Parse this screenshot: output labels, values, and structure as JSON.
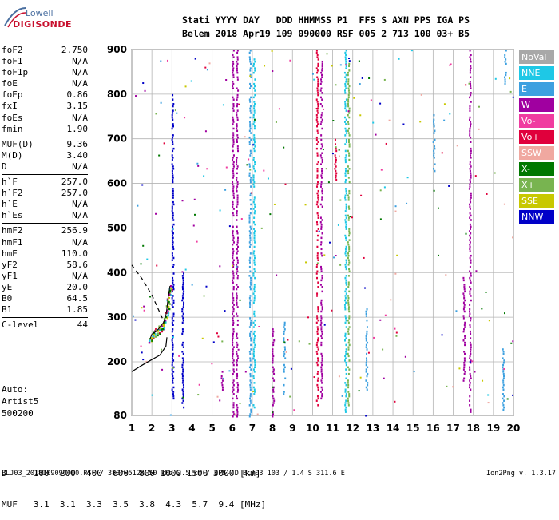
{
  "logo": {
    "top": "Lowell",
    "bottom": "DIGISONDE"
  },
  "header": {
    "line1": "Stati YYYY DAY   DDD HHMMSS P1  FFS S AXN PPS IGA PS",
    "line2": "Belem 2018 Apr19 109 090000 RSF 005 2 713 100 03+ B5"
  },
  "params": [
    {
      "label": "foF2",
      "value": "2.750"
    },
    {
      "label": "foF1",
      "value": "N/A"
    },
    {
      "label": "foF1p",
      "value": "N/A"
    },
    {
      "label": "foE",
      "value": "N/A"
    },
    {
      "label": "foEp",
      "value": "0.86"
    },
    {
      "label": "fxI",
      "value": "3.15"
    },
    {
      "label": "foEs",
      "value": "N/A"
    },
    {
      "label": "fmin",
      "value": "1.90"
    },
    {
      "label": "MUF(D)",
      "value": "9.36"
    },
    {
      "label": "M(D)",
      "value": "3.40"
    },
    {
      "label": "D",
      "value": "N/A"
    },
    {
      "label": "h`F",
      "value": "257.0"
    },
    {
      "label": "h`F2",
      "value": "257.0"
    },
    {
      "label": "h`E",
      "value": "N/A"
    },
    {
      "label": "h`Es",
      "value": "N/A"
    },
    {
      "label": "hmF2",
      "value": "256.9"
    },
    {
      "label": "hmF1",
      "value": "N/A"
    },
    {
      "label": "hmE",
      "value": "110.0"
    },
    {
      "label": "yF2",
      "value": "58.6"
    },
    {
      "label": "yF1",
      "value": "N/A"
    },
    {
      "label": "yE",
      "value": "20.0"
    },
    {
      "label": "B0",
      "value": "64.5"
    },
    {
      "label": "B1",
      "value": "1.85"
    },
    {
      "label": "C-level",
      "value": "44"
    }
  ],
  "auto": {
    "line1": "Auto:",
    "line2": "Artist5",
    "line3": "500200"
  },
  "legend": [
    {
      "label": "NoVal",
      "color": "#a8a8a8"
    },
    {
      "label": "NNE",
      "color": "#1ec8e6"
    },
    {
      "label": "E",
      "color": "#3ca0e0"
    },
    {
      "label": "W",
      "color": "#a000a0"
    },
    {
      "label": "Vo-",
      "color": "#f03ca0"
    },
    {
      "label": "Vo+",
      "color": "#e0003c"
    },
    {
      "label": "SSW",
      "color": "#f0a8a0"
    },
    {
      "label": "X-",
      "color": "#007800"
    },
    {
      "label": "X+",
      "color": "#78b450"
    },
    {
      "label": "SSE",
      "color": "#c8c800"
    },
    {
      "label": "NNW",
      "color": "#0000c8"
    }
  ],
  "dtable": {
    "row1": "D     100  200  400  600  800 1000 1500 3000 [km]",
    "row2": "MUF   3.1  3.1  3.3  3.5  3.8  4.3  5.7  9.4 [MHz]"
  },
  "footer": "BLJ03_2018109090000.RSF / 380fx512h 50 kHz 2.5 km / DPS-4D BLJ03 103 / 1.4 S 311.6 E",
  "version": "Ion2Png v. 1.3.17",
  "chart_data": {
    "type": "scatter",
    "xlim": [
      1,
      20
    ],
    "ylim": [
      80,
      900
    ],
    "x_ticks": [
      1,
      2,
      3,
      4,
      5,
      6,
      7,
      8,
      9,
      10,
      11,
      12,
      13,
      14,
      15,
      16,
      17,
      18,
      19,
      20
    ],
    "y_ticks": [
      80,
      200,
      300,
      400,
      500,
      600,
      700,
      800,
      900
    ],
    "grid": true,
    "legend_position": "right",
    "vertical_traces": [
      {
        "x": 6.05,
        "y0": 80,
        "y1": 900,
        "color": "#a000a0"
      },
      {
        "x": 6.25,
        "y0": 80,
        "y1": 900,
        "color": "#a000a0"
      },
      {
        "x": 6.9,
        "y0": 80,
        "y1": 900,
        "color": "#3ca0e0"
      },
      {
        "x": 7.1,
        "y0": 100,
        "y1": 900,
        "color": "#1ec8e6"
      },
      {
        "x": 10.25,
        "y0": 100,
        "y1": 900,
        "color": "#e0003c"
      },
      {
        "x": 10.45,
        "y0": 120,
        "y1": 880,
        "color": "#a000a0"
      },
      {
        "x": 11.65,
        "y0": 90,
        "y1": 900,
        "color": "#1ec8e6"
      },
      {
        "x": 11.8,
        "y0": 100,
        "y1": 870,
        "color": "#78b450"
      },
      {
        "x": 17.85,
        "y0": 90,
        "y1": 900,
        "color": "#a000a0"
      },
      {
        "x": 17.55,
        "y0": 160,
        "y1": 390,
        "color": "#a000a0"
      },
      {
        "x": 3.05,
        "y0": 120,
        "y1": 800,
        "color": "#0000c8"
      },
      {
        "x": 3.55,
        "y0": 100,
        "y1": 400,
        "color": "#0000c8"
      },
      {
        "x": 8.05,
        "y0": 80,
        "y1": 280,
        "color": "#a000a0"
      },
      {
        "x": 8.6,
        "y0": 130,
        "y1": 290,
        "color": "#3ca0e0"
      },
      {
        "x": 12.7,
        "y0": 140,
        "y1": 320,
        "color": "#3ca0e0"
      },
      {
        "x": 19.5,
        "y0": 80,
        "y1": 230,
        "color": "#3ca0e0"
      },
      {
        "x": 16.05,
        "y0": 630,
        "y1": 760,
        "color": "#3ca0e0"
      },
      {
        "x": 11.15,
        "y0": 610,
        "y1": 700,
        "color": "#e0003c"
      },
      {
        "x": 5.5,
        "y0": 140,
        "y1": 180,
        "color": "#a000a0"
      },
      {
        "x": 19.6,
        "y0": 820,
        "y1": 900,
        "color": "#3ca0e0"
      }
    ],
    "trace": {
      "name": "foF2 trace",
      "points": [
        [
          1.9,
          250
        ],
        [
          2.0,
          262
        ],
        [
          2.1,
          265
        ],
        [
          2.2,
          268
        ],
        [
          2.3,
          272
        ],
        [
          2.4,
          278
        ],
        [
          2.5,
          283
        ],
        [
          2.6,
          290
        ],
        [
          2.7,
          305
        ],
        [
          2.75,
          320
        ],
        [
          2.8,
          340
        ],
        [
          2.85,
          355
        ],
        [
          2.9,
          370
        ]
      ]
    },
    "profile": {
      "name": "electron density profile",
      "points": [
        [
          1.0,
          178
        ],
        [
          1.5,
          192
        ],
        [
          2.0,
          205
        ],
        [
          2.4,
          215
        ],
        [
          2.7,
          235
        ],
        [
          2.75,
          255
        ]
      ],
      "dashed": [
        [
          1.0,
          417
        ],
        [
          1.5,
          387
        ],
        [
          2.0,
          350
        ],
        [
          2.3,
          320
        ],
        [
          2.5,
          300
        ],
        [
          2.6,
          290
        ]
      ]
    }
  }
}
